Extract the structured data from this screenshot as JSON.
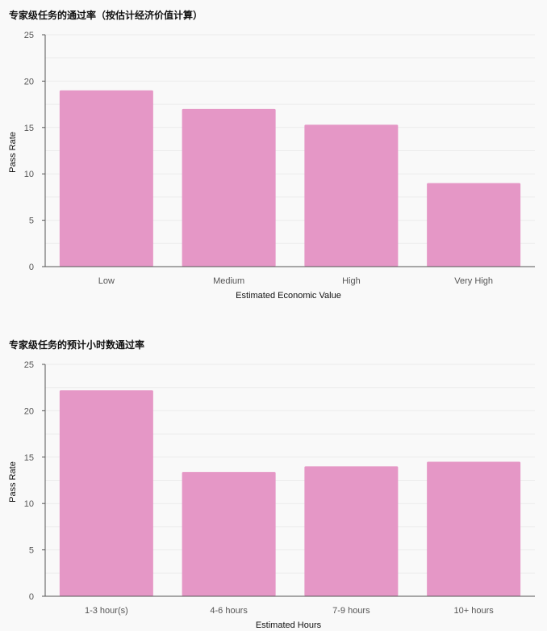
{
  "chart_data": [
    {
      "type": "bar",
      "title": "专家级任务的通过率（按估计经济价值计算）",
      "categories": [
        "Low",
        "Medium",
        "High",
        "Very High"
      ],
      "values": [
        19,
        17,
        15.3,
        9
      ],
      "xlabel": "Estimated Economic Value",
      "ylabel": "Pass Rate",
      "ylim": [
        0,
        25
      ],
      "yticks": [
        "0",
        "5",
        "10",
        "15",
        "20",
        "25"
      ],
      "grid": true,
      "bar_color": "#e597c6"
    },
    {
      "type": "bar",
      "title": "专家级任务的预计小时数通过率",
      "categories": [
        "1-3 hour(s)",
        "4-6 hours",
        "7-9 hours",
        "10+ hours"
      ],
      "values": [
        22.2,
        13.4,
        14,
        14.5
      ],
      "xlabel": "Estimated Hours",
      "ylabel": "Pass Rate",
      "ylim": [
        0,
        25
      ],
      "yticks": [
        "0",
        "5",
        "10",
        "15",
        "20",
        "25"
      ],
      "grid": true,
      "bar_color": "#e597c6"
    }
  ]
}
